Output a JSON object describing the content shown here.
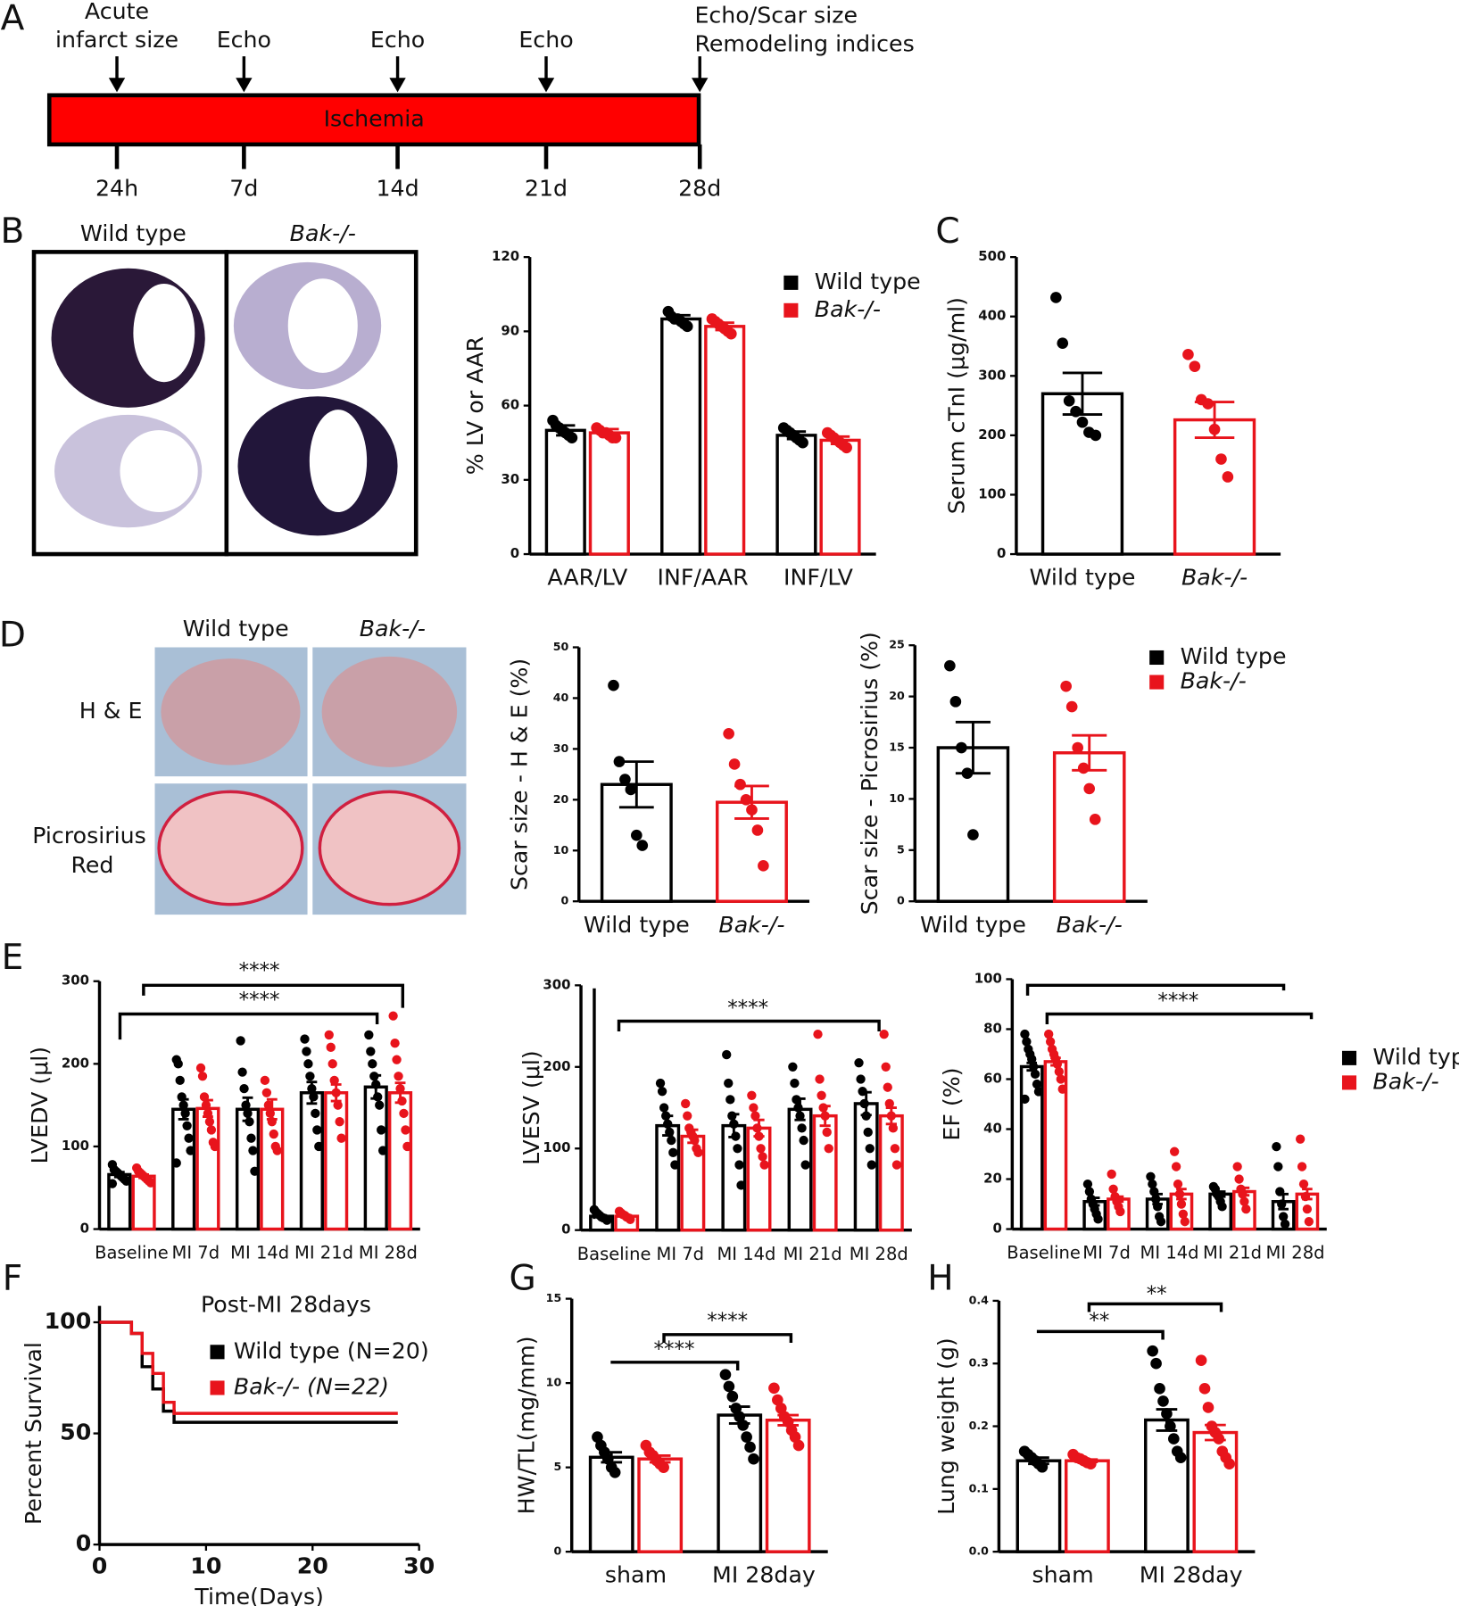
{
  "panel_labels": [
    "A",
    "B",
    "C",
    "D",
    "E",
    "F",
    "G",
    "H"
  ],
  "timeline": {
    "bar_label": "Ischemia",
    "events": [
      {
        "top": [
          "Acute",
          "infarct size"
        ],
        "time": "24h"
      },
      {
        "top": [
          "Echo"
        ],
        "time": "7d"
      },
      {
        "top": [
          "Echo"
        ],
        "time": "14d"
      },
      {
        "top": [
          "Echo"
        ],
        "time": "21d"
      },
      {
        "top": [
          "Echo/Scar size",
          "Remodeling indices"
        ],
        "time": "28d"
      }
    ]
  },
  "images": {
    "b_columns": [
      "Wild type",
      "Bak-/-"
    ],
    "d_columns": [
      "Wild type",
      "Bak-/-"
    ],
    "d_rows": [
      [
        "H & E"
      ],
      [
        "Picrosirius",
        "Red"
      ]
    ]
  },
  "chart_data": [
    {
      "type": "bar",
      "ylabel": "% LV or AAR",
      "categories": [
        "AAR/LV",
        "INF/AAR",
        "INF/LV"
      ],
      "ylim": [
        0,
        120
      ],
      "yticks": [
        0,
        30,
        60,
        90,
        120
      ],
      "series": [
        {
          "name": "Wild type",
          "color": "#000000",
          "values": [
            50,
            95,
            48
          ],
          "errors": [
            2,
            1.5,
            1.5
          ],
          "points": [
            [
              54,
              52,
              51,
              50,
              49,
              48,
              47
            ],
            [
              98,
              96,
              95,
              95,
              94,
              93,
              92
            ],
            [
              51,
              50,
              49,
              48,
              47,
              46,
              45
            ]
          ]
        },
        {
          "name": "Bak-/-",
          "color": "#e8141c",
          "values": [
            49,
            92,
            46
          ],
          "errors": [
            1.5,
            1.5,
            1.5
          ],
          "points": [
            [
              51,
              50,
              49,
              49,
              48,
              47,
              47
            ],
            [
              95,
              94,
              93,
              92,
              91,
              90,
              89
            ],
            [
              49,
              48,
              47,
              46,
              45,
              44,
              43
            ]
          ]
        }
      ]
    },
    {
      "type": "bar",
      "ylabel": "Serum cTnI (μg/ml)",
      "categories": [
        "Wild type",
        "Bak-/-"
      ],
      "ylim": [
        0,
        500
      ],
      "yticks": [
        0,
        100,
        200,
        300,
        400,
        500
      ],
      "series": [
        {
          "colors": [
            "#000000",
            "#e8141c"
          ],
          "values": [
            270,
            226
          ],
          "errors": [
            35,
            30
          ],
          "points": [
            [
              432,
              355,
              258,
              240,
              222,
              205,
              200
            ],
            [
              336,
              316,
              260,
              253,
              210,
              160,
              130
            ]
          ]
        }
      ]
    },
    {
      "type": "bar",
      "ylabel": "Scar size - H & E (%)",
      "categories": [
        "Wild type",
        "Bak-/-"
      ],
      "ylim": [
        0,
        50
      ],
      "yticks": [
        0,
        10,
        20,
        30,
        40,
        50
      ],
      "series": [
        {
          "colors": [
            "#000000",
            "#e8141c"
          ],
          "values": [
            23,
            19.5
          ],
          "errors": [
            4.5,
            3.2
          ],
          "points": [
            [
              42.5,
              27.5,
              24,
              22,
              13,
              11
            ],
            [
              33,
              27,
              23,
              20,
              18,
              14,
              7
            ]
          ]
        }
      ]
    },
    {
      "type": "bar",
      "ylabel": "Scar size - Picrosirius (%)",
      "categories": [
        "Wild type",
        "Bak-/-"
      ],
      "ylim": [
        0,
        25
      ],
      "yticks": [
        0,
        5,
        10,
        15,
        20,
        25
      ],
      "legend": [
        "Wild type",
        "Bak-/-"
      ],
      "legend_colors": [
        "#000000",
        "#e8141c"
      ],
      "series": [
        {
          "colors": [
            "#000000",
            "#e8141c"
          ],
          "values": [
            15,
            14.5
          ],
          "errors": [
            2.5,
            1.7
          ],
          "points": [
            [
              23,
              19.5,
              15,
              12.5,
              6.5
            ],
            [
              21,
              19,
              15,
              13,
              11,
              8
            ]
          ]
        }
      ]
    },
    {
      "type": "bar",
      "ylabel": "LVEDV (μl)",
      "categories": [
        "Baseline",
        "MI 7d",
        "MI 14d",
        "MI 21d",
        "MI 28d"
      ],
      "ylim": [
        0,
        300
      ],
      "yticks": [
        0,
        100,
        200,
        300
      ],
      "annotations": [
        "****",
        "****"
      ],
      "series": [
        {
          "color": "#000000",
          "values": [
            66,
            145,
            145,
            165,
            172
          ],
          "errors": [
            3,
            12,
            14,
            13,
            14
          ],
          "points": [
            [
              78,
              72,
              70,
              68,
              66,
              64,
              62,
              60,
              58,
              55
            ],
            [
              205,
              200,
              180,
              160,
              150,
              140,
              125,
              110,
              95,
              80
            ],
            [
              228,
              190,
              170,
              150,
              140,
              130,
              110,
              95,
              70
            ],
            [
              230,
              215,
              200,
              185,
              170,
              160,
              140,
              120,
              100
            ],
            [
              235,
              215,
              200,
              185,
              175,
              160,
              150,
              120,
              95
            ]
          ]
        },
        {
          "color": "#e8141c",
          "values": [
            64,
            146,
            145,
            165,
            165
          ],
          "errors": [
            2,
            10,
            12,
            10,
            12
          ],
          "points": [
            [
              74,
              70,
              68,
              66,
              64,
              62,
              60,
              58,
              56
            ],
            [
              195,
              185,
              160,
              150,
              140,
              130,
              120,
              105,
              100
            ],
            [
              180,
              165,
              150,
              140,
              130,
              115,
              100,
              95
            ],
            [
              235,
              220,
              200,
              180,
              165,
              150,
              130,
              110
            ],
            [
              258,
              225,
              205,
              185,
              170,
              155,
              140,
              120,
              100
            ]
          ]
        }
      ]
    },
    {
      "type": "bar",
      "ylabel": "LVESV (μl)",
      "categories": [
        "Baseline",
        "MI 7d",
        "MI 14d",
        "MI 21d",
        "MI 28d"
      ],
      "ylim": [
        0,
        300
      ],
      "yticks": [
        0,
        100,
        200,
        300
      ],
      "annotations": [
        "****"
      ],
      "series": [
        {
          "color": "#000000",
          "values": [
            17,
            128,
            128,
            148,
            155
          ],
          "errors": [
            1,
            12,
            14,
            13,
            14
          ],
          "points": [
            [
              25,
              22,
              20,
              18,
              16,
              15,
              14,
              12
            ],
            [
              180,
              170,
              150,
              140,
              130,
              120,
              110,
              95,
              80
            ],
            [
              215,
              180,
              160,
              140,
              130,
              115,
              100,
              80,
              55
            ],
            [
              200,
              180,
              160,
              150,
              140,
              125,
              110,
              80
            ],
            [
              205,
              185,
              170,
              155,
              140,
              120,
              100,
              80
            ]
          ]
        },
        {
          "color": "#e8141c",
          "values": [
            17,
            115,
            125,
            140,
            140
          ],
          "errors": [
            1,
            8,
            10,
            12,
            10
          ],
          "points": [
            [
              23,
              21,
              19,
              18,
              16,
              15,
              13
            ],
            [
              155,
              140,
              125,
              120,
              115,
              110,
              100,
              95
            ],
            [
              165,
              150,
              140,
              125,
              115,
              100,
              90,
              80
            ],
            [
              240,
              185,
              165,
              150,
              140,
              120,
              100
            ],
            [
              240,
              200,
              175,
              155,
              140,
              125,
              100,
              80
            ]
          ]
        }
      ]
    },
    {
      "type": "bar",
      "ylabel": "EF (%)",
      "categories": [
        "Baseline",
        "MI 7d",
        "MI 14d",
        "MI 21d",
        "MI 28d"
      ],
      "ylim": [
        0,
        100
      ],
      "yticks": [
        0,
        20,
        40,
        60,
        80,
        100
      ],
      "annotations": [
        "****"
      ],
      "legend": [
        "Wild type",
        "Bak-/-"
      ],
      "legend_colors": [
        "#000000",
        "#e8141c"
      ],
      "series": [
        {
          "color": "#000000",
          "values": [
            65,
            11,
            12,
            14,
            11
          ],
          "errors": [
            1.5,
            1.5,
            2,
            1,
            3
          ],
          "points": [
            [
              78,
              75,
              72,
              70,
              68,
              65,
              62,
              58,
              55,
              52
            ],
            [
              18,
              15,
              12,
              10,
              8,
              6,
              4
            ],
            [
              21,
              18,
              15,
              12,
              9,
              5,
              3
            ],
            [
              17,
              16,
              14,
              13,
              11,
              9
            ],
            [
              33,
              25,
              15,
              10,
              5,
              2
            ]
          ]
        },
        {
          "color": "#e8141c",
          "values": [
            67,
            12,
            14,
            15,
            14
          ],
          "errors": [
            1.5,
            1,
            2,
            1.5,
            2
          ],
          "points": [
            [
              78,
              75,
              72,
              70,
              68,
              66,
              63,
              60,
              56
            ],
            [
              22,
              16,
              13,
              11,
              9,
              7
            ],
            [
              31,
              25,
              18,
              14,
              10,
              6,
              3
            ],
            [
              25,
              20,
              16,
              14,
              11,
              8
            ],
            [
              36,
              25,
              18,
              13,
              8,
              3
            ]
          ]
        }
      ]
    },
    {
      "type": "line",
      "step": true,
      "title": "Post-MI 28days",
      "xlabel": "Time(Days)",
      "ylabel": "Percent Survival",
      "xlim": [
        0,
        30
      ],
      "ylim": [
        0,
        100
      ],
      "xticks": [
        0,
        10,
        20,
        30
      ],
      "yticks": [
        0,
        50,
        100
      ],
      "series": [
        {
          "name": "Wild type (N=20)",
          "color": "#000000",
          "x": [
            0,
            3,
            4,
            5,
            6,
            7,
            28
          ],
          "values": [
            100,
            95,
            80,
            70,
            60,
            55,
            55
          ]
        },
        {
          "name": "Bak-/- (N=22)",
          "color": "#e8141c",
          "x": [
            0,
            3,
            4,
            5,
            6,
            7,
            28
          ],
          "values": [
            100,
            95,
            86,
            77,
            64,
            59,
            59
          ]
        }
      ]
    },
    {
      "type": "bar",
      "ylabel": "HW/TL(mg/mm)",
      "categories": [
        "sham",
        "MI 28day"
      ],
      "ylim": [
        0,
        15
      ],
      "yticks": [
        0,
        5,
        10,
        15
      ],
      "annotations": [
        "****",
        "****"
      ],
      "series": [
        {
          "color": "#000000",
          "values": [
            5.6,
            8.1
          ],
          "errors": [
            0.3,
            0.5
          ],
          "points": [
            [
              6.8,
              6.3,
              5.9,
              5.5,
              5.0,
              4.7
            ],
            [
              10.5,
              9.8,
              9.2,
              8.5,
              8.0,
              7.5,
              6.8,
              6.2,
              5.5
            ]
          ]
        },
        {
          "color": "#e8141c",
          "values": [
            5.5,
            7.8
          ],
          "errors": [
            0.2,
            0.3
          ],
          "points": [
            [
              6.3,
              5.9,
              5.7,
              5.4,
              5.2,
              5.0
            ],
            [
              9.7,
              9.0,
              8.5,
              8.0,
              7.7,
              7.2,
              6.8,
              6.3
            ]
          ]
        }
      ]
    },
    {
      "type": "bar",
      "ylabel": "Lung weight (g)",
      "categories": [
        "sham",
        "MI 28day"
      ],
      "ylim": [
        0,
        0.4
      ],
      "yticks": [
        {
          "value": 0,
          "label": "0.0"
        },
        {
          "value": 0.1,
          "label": "0.1"
        },
        {
          "value": 0.2,
          "label": "0.2"
        },
        {
          "value": 0.3,
          "label": "0.3"
        },
        {
          "value": 0.4,
          "label": "0.4"
        }
      ],
      "annotations": [
        "**",
        "**"
      ],
      "series": [
        {
          "color": "#000000",
          "values": [
            0.145,
            0.21
          ],
          "errors": [
            0.005,
            0.017
          ],
          "points": [
            [
              0.16,
              0.155,
              0.15,
              0.145,
              0.14,
              0.135
            ],
            [
              0.32,
              0.3,
              0.26,
              0.24,
              0.22,
              0.2,
              0.18,
              0.16,
              0.15
            ]
          ]
        },
        {
          "color": "#e8141c",
          "values": [
            0.145,
            0.19
          ],
          "errors": [
            0.002,
            0.012
          ],
          "points": [
            [
              0.155,
              0.15,
              0.148,
              0.145,
              0.142,
              0.14
            ],
            [
              0.305,
              0.26,
              0.23,
              0.2,
              0.19,
              0.18,
              0.16,
              0.15,
              0.14
            ]
          ]
        }
      ]
    }
  ]
}
